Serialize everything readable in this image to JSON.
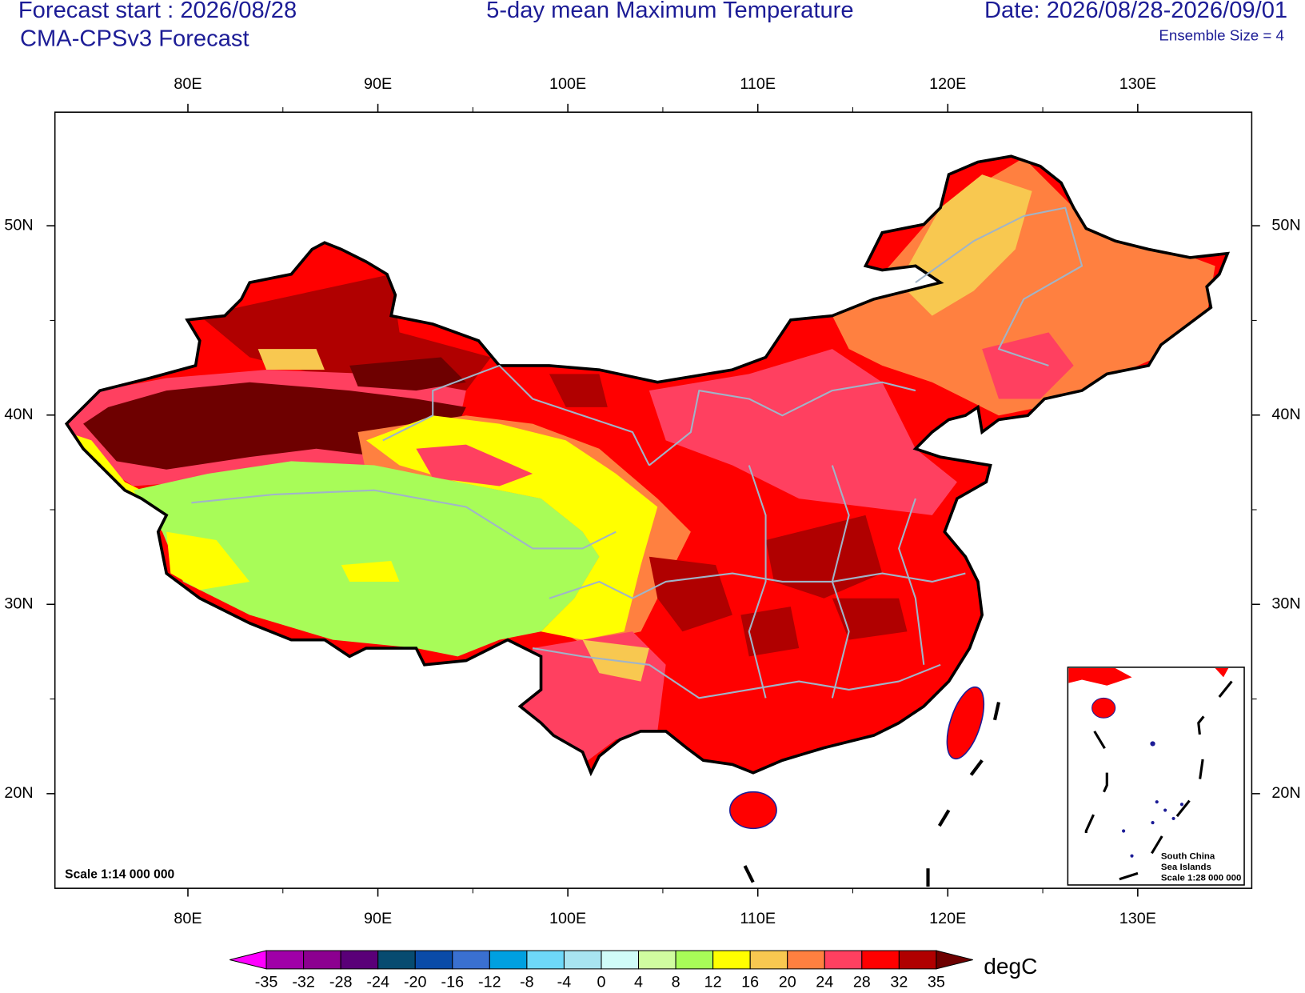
{
  "header": {
    "forecast_start": "Forecast start : 2026/08/28",
    "model": "CMA-CPSv3 Forecast",
    "title": "5-day mean Maximum Temperature",
    "date": "Date: 2026/08/28-2026/09/01",
    "ensemble": "Ensemble Size = 4"
  },
  "map": {
    "xlim": [
      73,
      136
    ],
    "ylim": [
      15,
      56
    ],
    "xticks": [
      {
        "value": 80,
        "label": "80E"
      },
      {
        "value": 90,
        "label": "90E"
      },
      {
        "value": 100,
        "label": "100E"
      },
      {
        "value": 110,
        "label": "110E"
      },
      {
        "value": 120,
        "label": "120E"
      },
      {
        "value": 130,
        "label": "130E"
      }
    ],
    "yticks": [
      {
        "value": 20,
        "label": "20N"
      },
      {
        "value": 30,
        "label": "30N"
      },
      {
        "value": 40,
        "label": "40N"
      },
      {
        "value": 50,
        "label": "50N"
      }
    ],
    "scale": "Scale 1:14 000 000",
    "inset": {
      "lines": [
        "South China",
        "Sea Islands",
        "Scale 1:28 000 000"
      ]
    }
  },
  "colorbar": {
    "levels": [
      -35,
      -32,
      -28,
      -24,
      -20,
      -16,
      -12,
      -8,
      -4,
      0,
      4,
      8,
      12,
      16,
      20,
      24,
      28,
      32,
      35
    ],
    "colors": [
      "#ff00ff",
      "#a000a8",
      "#8c0090",
      "#5a0078",
      "#074b70",
      "#0a4ba8",
      "#3a70d0",
      "#00a0e0",
      "#6ed8f8",
      "#a8e4f0",
      "#d0fcf8",
      "#d0fca0",
      "#a8fc58",
      "#ffff00",
      "#f8c850",
      "#ff8040",
      "#ff4060",
      "#ff0000",
      "#b00000",
      "#6e0000"
    ],
    "unit": "degC"
  }
}
